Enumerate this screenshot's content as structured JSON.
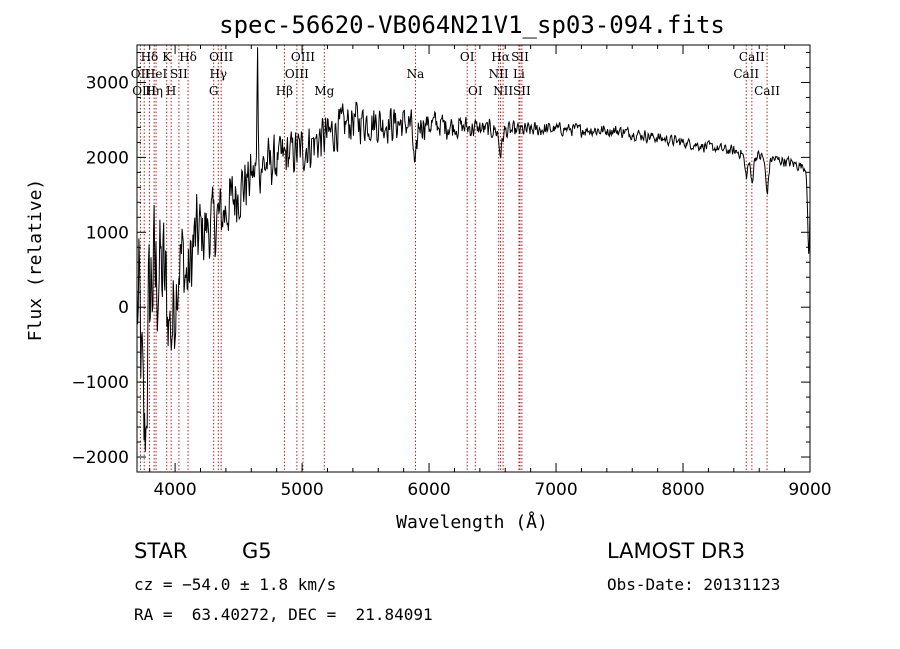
{
  "chart_data": {
    "type": "line",
    "title": "spec-56620-VB064N21V1_sp03-094.fits",
    "xlabel": "Wavelength (Å)",
    "ylabel": "Flux (relative)",
    "xlim": [
      3700,
      9000
    ],
    "ylim": [
      -2200,
      3500
    ],
    "xticks": [
      4000,
      5000,
      6000,
      7000,
      8000,
      9000
    ],
    "yticks": [
      -2000,
      -1000,
      0,
      1000,
      2000,
      3000
    ],
    "continuum": [
      {
        "x": 3700,
        "y": 0
      },
      {
        "x": 3800,
        "y": 400
      },
      {
        "x": 3900,
        "y": 500
      },
      {
        "x": 4000,
        "y": 700
      },
      {
        "x": 4100,
        "y": 850
      },
      {
        "x": 4200,
        "y": 1000
      },
      {
        "x": 4300,
        "y": 1100
      },
      {
        "x": 4400,
        "y": 1300
      },
      {
        "x": 4500,
        "y": 1550
      },
      {
        "x": 4600,
        "y": 1750
      },
      {
        "x": 4700,
        "y": 1900
      },
      {
        "x": 4800,
        "y": 1950
      },
      {
        "x": 4900,
        "y": 2050
      },
      {
        "x": 5000,
        "y": 2100
      },
      {
        "x": 5200,
        "y": 2300
      },
      {
        "x": 5400,
        "y": 2500
      },
      {
        "x": 5600,
        "y": 2450
      },
      {
        "x": 5800,
        "y": 2450
      },
      {
        "x": 6000,
        "y": 2450
      },
      {
        "x": 6300,
        "y": 2400
      },
      {
        "x": 6600,
        "y": 2350
      },
      {
        "x": 7000,
        "y": 2380
      },
      {
        "x": 7500,
        "y": 2350
      },
      {
        "x": 8000,
        "y": 2200
      },
      {
        "x": 8500,
        "y": 2050
      },
      {
        "x": 8800,
        "y": 1950
      },
      {
        "x": 9000,
        "y": 1850
      }
    ],
    "absorption_features": [
      {
        "x": 3760,
        "depth": 2000,
        "width": 20
      },
      {
        "x": 3970,
        "depth": 900,
        "width": 30
      },
      {
        "x": 4100,
        "depth": 500,
        "width": 25
      },
      {
        "x": 4650,
        "depth": -1800,
        "width": 4
      },
      {
        "x": 5890,
        "depth": 650,
        "width": 12
      },
      {
        "x": 6563,
        "depth": 300,
        "width": 12
      },
      {
        "x": 8498,
        "depth": 300,
        "width": 12
      },
      {
        "x": 8542,
        "depth": 350,
        "width": 12
      },
      {
        "x": 8662,
        "depth": 450,
        "width": 12
      },
      {
        "x": 8990,
        "depth": 1200,
        "width": 8
      }
    ],
    "noise_profile": [
      {
        "x": 3700,
        "amp": 1400
      },
      {
        "x": 3900,
        "amp": 1100
      },
      {
        "x": 4100,
        "amp": 700
      },
      {
        "x": 4400,
        "amp": 550
      },
      {
        "x": 4700,
        "amp": 400
      },
      {
        "x": 5000,
        "amp": 380
      },
      {
        "x": 5500,
        "amp": 330
      },
      {
        "x": 6000,
        "amp": 240
      },
      {
        "x": 6500,
        "amp": 150
      },
      {
        "x": 7000,
        "amp": 110
      },
      {
        "x": 8000,
        "amp": 90
      },
      {
        "x": 9000,
        "amp": 90
      }
    ],
    "lines": [
      {
        "label": "Hδ",
        "x": 3798,
        "row": 0
      },
      {
        "label": "OII",
        "x": 3727,
        "row": 1
      },
      {
        "label": "OIII",
        "x": 3757,
        "row": 2
      },
      {
        "label": "HeI",
        "x": 3850,
        "row": 1
      },
      {
        "label": "Hη",
        "x": 3835,
        "row": 2
      },
      {
        "label": "K",
        "x": 3934,
        "row": 0
      },
      {
        "label": "SII",
        "x": 4030,
        "row": 1
      },
      {
        "label": "H",
        "x": 3969,
        "row": 2
      },
      {
        "label": "Hδ",
        "x": 4102,
        "row": 0
      },
      {
        "label": "OIII",
        "x": 4363,
        "row": 0
      },
      {
        "label": "Hγ",
        "x": 4340,
        "row": 1
      },
      {
        "label": "G",
        "x": 4304,
        "row": 2
      },
      {
        "label": "Hβ",
        "x": 4861,
        "row": 2
      },
      {
        "label": "OIII",
        "x": 5007,
        "row": 0
      },
      {
        "label": "OIII",
        "x": 4959,
        "row": 1
      },
      {
        "label": "Mg",
        "x": 5175,
        "row": 2
      },
      {
        "label": "Na",
        "x": 5893,
        "row": 1
      },
      {
        "label": "OI",
        "x": 6300,
        "row": 0
      },
      {
        "label": "OI",
        "x": 6364,
        "row": 2
      },
      {
        "label": "Hα",
        "x": 6563,
        "row": 0
      },
      {
        "label": "NII",
        "x": 6548,
        "row": 1
      },
      {
        "label": "NII",
        "x": 6583,
        "row": 2
      },
      {
        "label": "SII",
        "x": 6716,
        "row": 0
      },
      {
        "label": "Li",
        "x": 6708,
        "row": 1
      },
      {
        "label": "SII",
        "x": 6731,
        "row": 2
      },
      {
        "label": "CaII",
        "x": 8542,
        "row": 0
      },
      {
        "label": "CaII",
        "x": 8498,
        "row": 1
      },
      {
        "label": "CaII",
        "x": 8662,
        "row": 2
      }
    ]
  },
  "info": {
    "class": "STAR",
    "subclass": "G5",
    "survey": "LAMOST DR3",
    "cz": "cz = −54.0 ± 1.8 km/s",
    "obs_date": "Obs-Date: 20131123",
    "coords": "RA =  63.40272, DEC =  21.84091"
  },
  "colors": {
    "line_marker": "#b22222",
    "spectrum": "#000000"
  }
}
